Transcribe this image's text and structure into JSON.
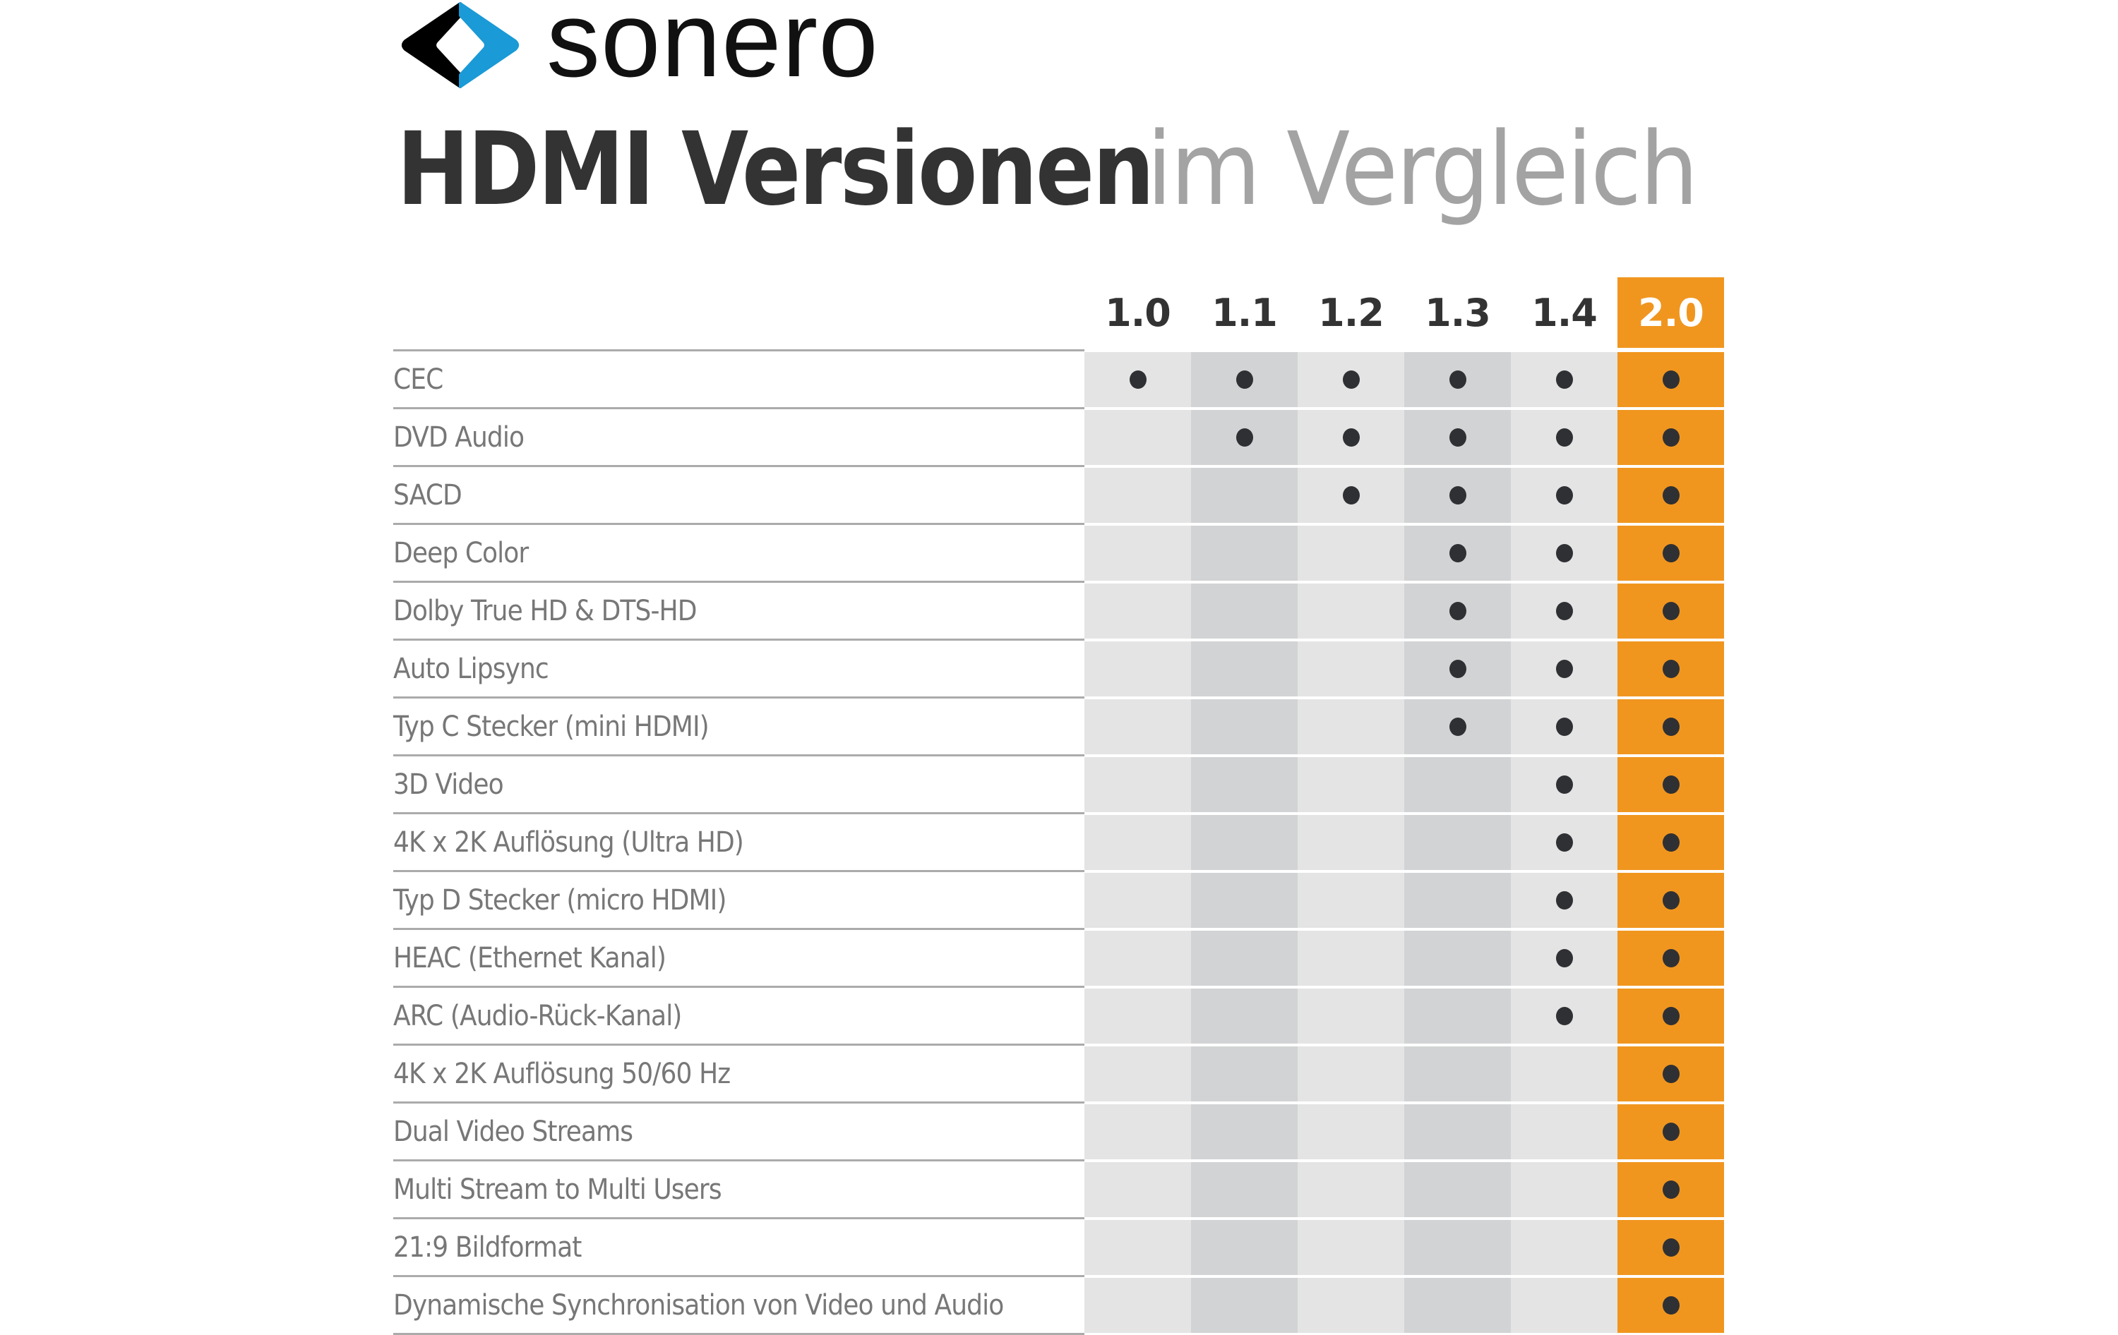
{
  "brand": {
    "name": "sonero",
    "logo_icon": "sonero-diamond-logo-icon",
    "colors": {
      "logo_black": "#000000",
      "logo_blue": "#1a9ad6"
    }
  },
  "title": {
    "bold": "HDMI Versionen",
    "light": "im Vergleich"
  },
  "colors": {
    "accent": "#f0961f",
    "cell_light": "#e4e4e4",
    "cell_dark": "#d2d3d4",
    "dot": "#2f3033",
    "label_text": "#777777",
    "heading_text": "#333333"
  },
  "table": {
    "versions": [
      "1.0",
      "1.1",
      "1.2",
      "1.3",
      "1.4",
      "2.0"
    ],
    "highlight_version": "2.0",
    "supported_icon": "filled-dot-icon",
    "features": [
      {
        "label": "CEC",
        "support": [
          true,
          true,
          true,
          true,
          true,
          true
        ]
      },
      {
        "label": "DVD Audio",
        "support": [
          false,
          true,
          true,
          true,
          true,
          true
        ]
      },
      {
        "label": "SACD",
        "support": [
          false,
          false,
          true,
          true,
          true,
          true
        ]
      },
      {
        "label": "Deep Color",
        "support": [
          false,
          false,
          false,
          true,
          true,
          true
        ]
      },
      {
        "label": "Dolby True HD & DTS-HD",
        "support": [
          false,
          false,
          false,
          true,
          true,
          true
        ]
      },
      {
        "label": "Auto Lipsync",
        "support": [
          false,
          false,
          false,
          true,
          true,
          true
        ]
      },
      {
        "label": "Typ C Stecker (mini HDMI)",
        "support": [
          false,
          false,
          false,
          true,
          true,
          true
        ]
      },
      {
        "label": "3D Video",
        "support": [
          false,
          false,
          false,
          false,
          true,
          true
        ]
      },
      {
        "label": "4K x 2K Auflösung (Ultra HD)",
        "support": [
          false,
          false,
          false,
          false,
          true,
          true
        ]
      },
      {
        "label": "Typ D Stecker (micro HDMI)",
        "support": [
          false,
          false,
          false,
          false,
          true,
          true
        ]
      },
      {
        "label": "HEAC (Ethernet Kanal)",
        "support": [
          false,
          false,
          false,
          false,
          true,
          true
        ]
      },
      {
        "label": "ARC (Audio-Rück-Kanal)",
        "support": [
          false,
          false,
          false,
          false,
          true,
          true
        ]
      },
      {
        "label": "4K x 2K Auflösung 50/60 Hz",
        "support": [
          false,
          false,
          false,
          false,
          false,
          true
        ]
      },
      {
        "label": "Dual Video Streams",
        "support": [
          false,
          false,
          false,
          false,
          false,
          true
        ]
      },
      {
        "label": "Multi Stream to Multi Users",
        "support": [
          false,
          false,
          false,
          false,
          false,
          true
        ]
      },
      {
        "label": "21:9 Bildformat",
        "support": [
          false,
          false,
          false,
          false,
          false,
          true
        ]
      },
      {
        "label": "Dynamische Synchronisation von Video und Audio",
        "support": [
          false,
          false,
          false,
          false,
          false,
          true
        ]
      }
    ]
  }
}
